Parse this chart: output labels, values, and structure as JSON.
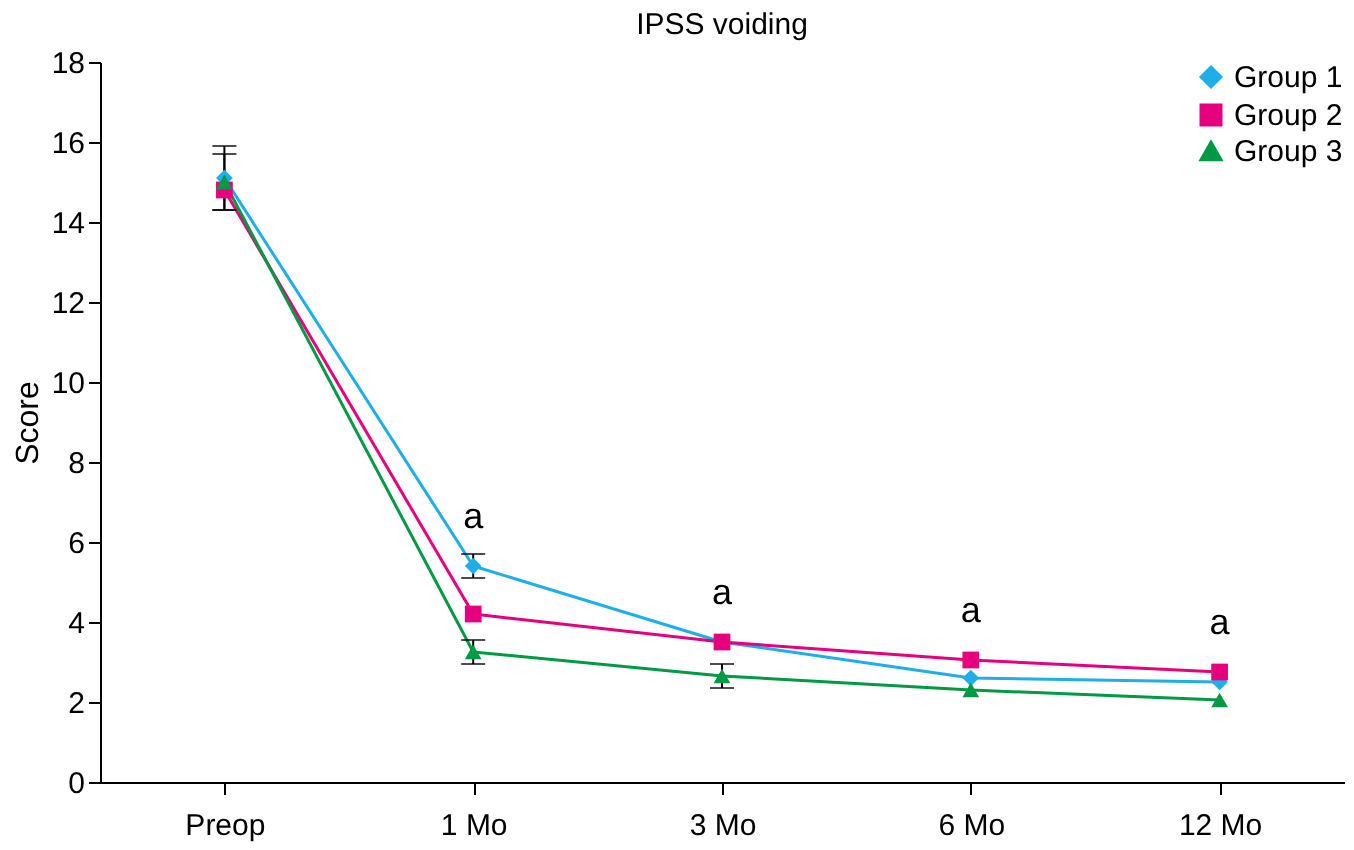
{
  "chart_data": {
    "type": "line",
    "title": "IPSS voiding",
    "ylabel": "Score",
    "categories": [
      "Preop",
      "1 Mo",
      "3 Mo",
      "6 Mo",
      "12 Mo"
    ],
    "series": [
      {
        "name": "Group 1",
        "color": "#1eaee8",
        "marker": "diamond",
        "values": [
          15.1,
          5.4,
          3.5,
          2.6,
          2.5
        ],
        "errors": [
          0.8,
          0.3,
          null,
          null,
          null
        ]
      },
      {
        "name": "Group 2",
        "color": "#e6007e",
        "marker": "square",
        "values": [
          14.8,
          4.2,
          3.5,
          3.05,
          2.75
        ]
      },
      {
        "name": "Group 3",
        "color": "#009a44",
        "marker": "triangle",
        "values": [
          15.0,
          3.25,
          2.65,
          2.3,
          2.05
        ],
        "errors": [
          0.7,
          0.3,
          0.3,
          null,
          null
        ]
      }
    ],
    "annotations": [
      "a",
      "a",
      "a",
      "a"
    ],
    "ylim": [
      0,
      18
    ],
    "yticks": [
      0,
      2,
      4,
      6,
      8,
      10,
      12,
      14,
      16,
      18
    ],
    "grid": false,
    "legend": "top right",
    "line_style": "solid"
  }
}
